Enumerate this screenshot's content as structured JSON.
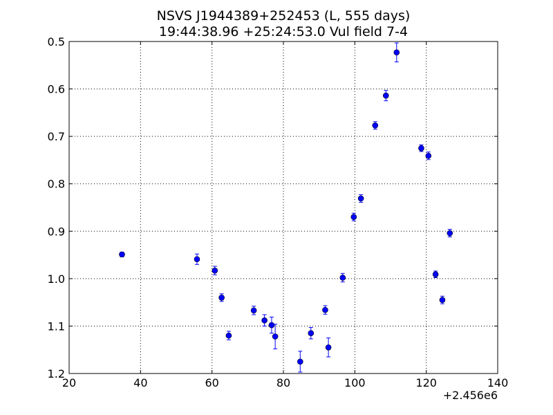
{
  "chart_data": {
    "type": "scatter",
    "title": "NSVS J1944389+252453 (L, 555 days)",
    "subtitle": "19:44:38.96 +25:24:53.0 Vul field 7-4",
    "xlabel": "",
    "ylabel": "",
    "x_offset_label": "+2.456e6",
    "xlim": [
      20,
      140
    ],
    "ylim": [
      0.5,
      1.2
    ],
    "y_inverted": true,
    "grid": true,
    "xticks": [
      "20",
      "40",
      "60",
      "80",
      "100",
      "120",
      "140"
    ],
    "yticks": [
      "0.5",
      "0.6",
      "0.7",
      "0.8",
      "0.9",
      "1.0",
      "1.1",
      "1.2"
    ],
    "marker_color": "#0000ff",
    "points": [
      {
        "x": 34.8,
        "y": 0.949,
        "err": 0.005
      },
      {
        "x": 55.8,
        "y": 0.959,
        "err": 0.011
      },
      {
        "x": 60.8,
        "y": 0.983,
        "err": 0.009
      },
      {
        "x": 62.7,
        "y": 1.04,
        "err": 0.008
      },
      {
        "x": 64.7,
        "y": 1.12,
        "err": 0.009
      },
      {
        "x": 71.7,
        "y": 1.067,
        "err": 0.009
      },
      {
        "x": 74.7,
        "y": 1.088,
        "err": 0.012
      },
      {
        "x": 76.7,
        "y": 1.098,
        "err": 0.017
      },
      {
        "x": 77.7,
        "y": 1.122,
        "err": 0.026
      },
      {
        "x": 84.7,
        "y": 1.175,
        "err": 0.022
      },
      {
        "x": 87.7,
        "y": 1.115,
        "err": 0.012
      },
      {
        "x": 91.7,
        "y": 1.066,
        "err": 0.009
      },
      {
        "x": 92.6,
        "y": 1.145,
        "err": 0.02
      },
      {
        "x": 96.6,
        "y": 0.998,
        "err": 0.009
      },
      {
        "x": 99.7,
        "y": 0.87,
        "err": 0.008
      },
      {
        "x": 101.7,
        "y": 0.831,
        "err": 0.008
      },
      {
        "x": 105.7,
        "y": 0.677,
        "err": 0.008
      },
      {
        "x": 108.7,
        "y": 0.614,
        "err": 0.011
      },
      {
        "x": 111.7,
        "y": 0.523,
        "err": 0.02
      },
      {
        "x": 118.6,
        "y": 0.725,
        "err": 0.007
      },
      {
        "x": 120.6,
        "y": 0.741,
        "err": 0.008
      },
      {
        "x": 122.6,
        "y": 0.991,
        "err": 0.007
      },
      {
        "x": 124.5,
        "y": 1.045,
        "err": 0.008
      },
      {
        "x": 126.6,
        "y": 0.904,
        "err": 0.008
      }
    ]
  }
}
